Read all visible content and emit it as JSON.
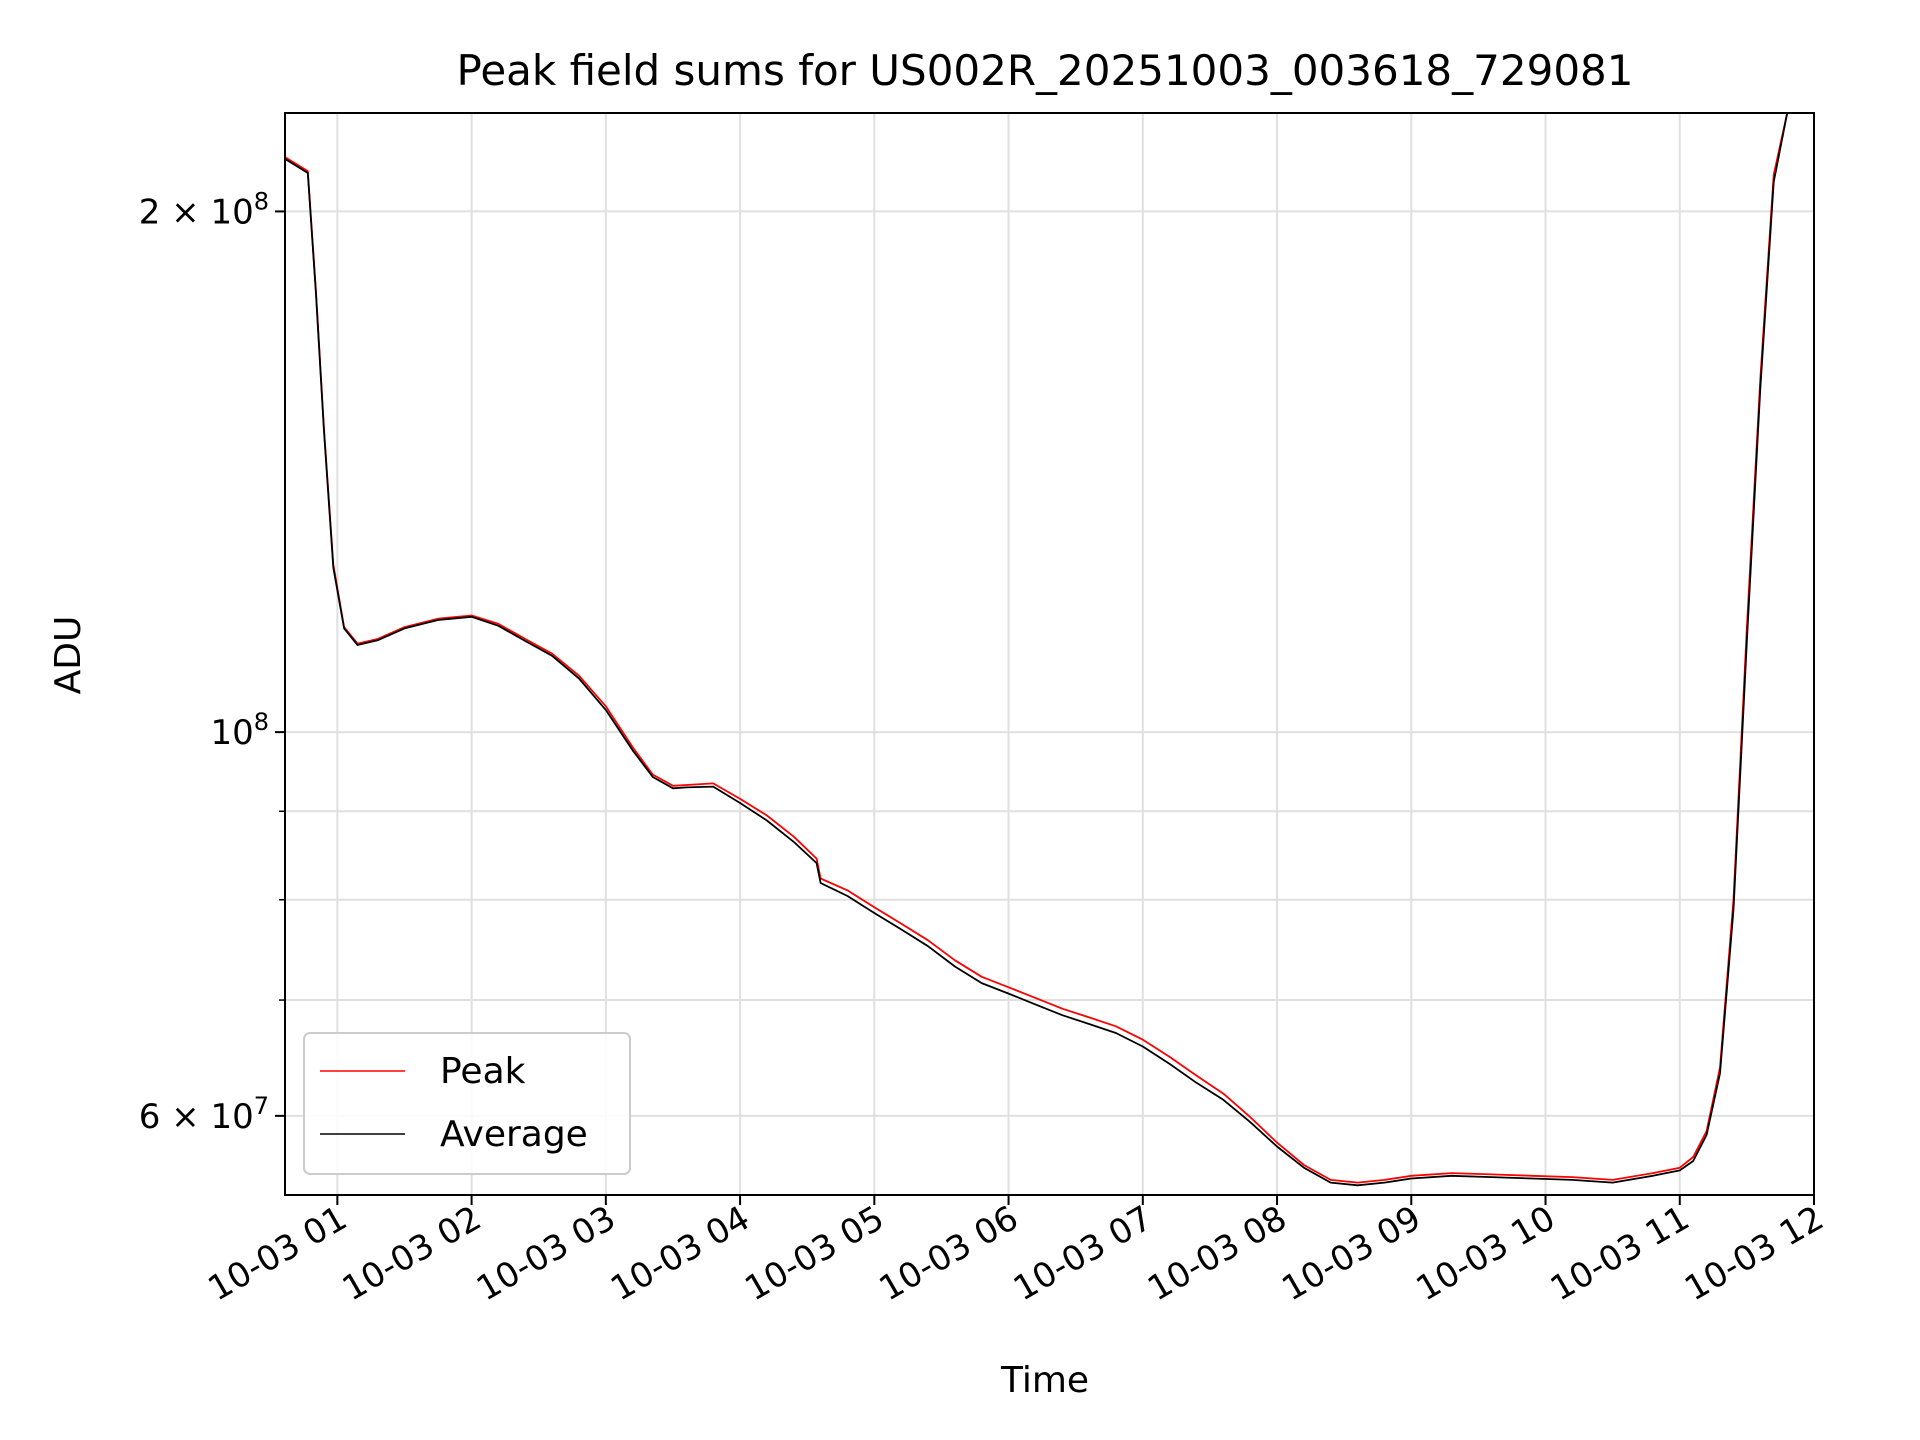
{
  "chart_data": {
    "type": "line",
    "title": "Peak field sums for US002R_20251003_003618_729081",
    "xlabel": "Time",
    "ylabel": "ADU",
    "yscale": "log",
    "grid": true,
    "legend_position": "lower-left",
    "x_unit": "hours since 2025-10-03 00:00",
    "xlim": [
      0.61,
      12.0
    ],
    "ylim": [
      54000000,
      228000000
    ],
    "x_ticks": [
      {
        "value": 1,
        "label": "10-03 01"
      },
      {
        "value": 2,
        "label": "10-03 02"
      },
      {
        "value": 3,
        "label": "10-03 03"
      },
      {
        "value": 4,
        "label": "10-03 04"
      },
      {
        "value": 5,
        "label": "10-03 05"
      },
      {
        "value": 6,
        "label": "10-03 06"
      },
      {
        "value": 7,
        "label": "10-03 07"
      },
      {
        "value": 8,
        "label": "10-03 08"
      },
      {
        "value": 9,
        "label": "10-03 09"
      },
      {
        "value": 10,
        "label": "10-03 10"
      },
      {
        "value": 11,
        "label": "10-03 11"
      },
      {
        "value": 12,
        "label": "10-03 12"
      }
    ],
    "y_major_ticks": [
      {
        "value": 60000000,
        "mantissa": "6",
        "exponent": "7"
      },
      {
        "value": 100000000,
        "mantissa": "",
        "exponent": "8"
      },
      {
        "value": 200000000,
        "mantissa": "2",
        "exponent": "8"
      }
    ],
    "y_minor_ticks": [
      70000000,
      80000000,
      90000000
    ],
    "series": [
      {
        "name": "Peak",
        "color": "#ff0000",
        "points": [
          [
            0.61,
            215000000
          ],
          [
            0.78,
            211000000
          ],
          [
            0.84,
            180000000
          ],
          [
            0.9,
            150000000
          ],
          [
            0.97,
            125000000
          ],
          [
            1.05,
            115000000
          ],
          [
            1.15,
            112500000
          ],
          [
            1.3,
            113200000
          ],
          [
            1.5,
            115000000
          ],
          [
            1.75,
            116300000
          ],
          [
            2.0,
            116800000
          ],
          [
            2.2,
            115500000
          ],
          [
            2.4,
            113200000
          ],
          [
            2.6,
            111000000
          ],
          [
            2.8,
            107800000
          ],
          [
            3.0,
            103500000
          ],
          [
            3.2,
            98000000
          ],
          [
            3.35,
            94500000
          ],
          [
            3.5,
            93100000
          ],
          [
            3.6,
            93200000
          ],
          [
            3.8,
            93400000
          ],
          [
            4.0,
            91500000
          ],
          [
            4.2,
            89500000
          ],
          [
            4.4,
            87000000
          ],
          [
            4.57,
            84500000
          ],
          [
            4.6,
            82300000
          ],
          [
            4.8,
            81000000
          ],
          [
            5.0,
            79200000
          ],
          [
            5.2,
            77500000
          ],
          [
            5.4,
            75800000
          ],
          [
            5.6,
            73800000
          ],
          [
            5.8,
            72200000
          ],
          [
            6.0,
            71200000
          ],
          [
            6.2,
            70200000
          ],
          [
            6.4,
            69200000
          ],
          [
            6.6,
            68400000
          ],
          [
            6.8,
            67600000
          ],
          [
            7.0,
            66400000
          ],
          [
            7.2,
            64900000
          ],
          [
            7.4,
            63300000
          ],
          [
            7.6,
            61800000
          ],
          [
            7.8,
            59900000
          ],
          [
            8.0,
            57900000
          ],
          [
            8.2,
            56200000
          ],
          [
            8.4,
            55100000
          ],
          [
            8.6,
            54900000
          ],
          [
            8.8,
            55100000
          ],
          [
            9.0,
            55400000
          ],
          [
            9.3,
            55600000
          ],
          [
            9.6,
            55500000
          ],
          [
            9.9,
            55400000
          ],
          [
            10.2,
            55300000
          ],
          [
            10.5,
            55100000
          ],
          [
            10.8,
            55600000
          ],
          [
            11.0,
            56000000
          ],
          [
            11.1,
            56800000
          ],
          [
            11.2,
            58800000
          ],
          [
            11.3,
            64000000
          ],
          [
            11.4,
            80000000
          ],
          [
            11.5,
            115000000
          ],
          [
            11.6,
            160000000
          ],
          [
            11.7,
            210000000
          ],
          [
            11.8,
            228000000
          ]
        ]
      },
      {
        "name": "Average",
        "color": "#000000",
        "points": [
          [
            0.61,
            214500000
          ],
          [
            0.78,
            210500000
          ],
          [
            0.84,
            179500000
          ],
          [
            0.9,
            149500000
          ],
          [
            0.97,
            124500000
          ],
          [
            1.05,
            114800000
          ],
          [
            1.15,
            112300000
          ],
          [
            1.3,
            113000000
          ],
          [
            1.5,
            114800000
          ],
          [
            1.75,
            116100000
          ],
          [
            2.0,
            116600000
          ],
          [
            2.2,
            115200000
          ],
          [
            2.4,
            112900000
          ],
          [
            2.6,
            110700000
          ],
          [
            2.8,
            107400000
          ],
          [
            3.0,
            103000000
          ],
          [
            3.2,
            97600000
          ],
          [
            3.35,
            94200000
          ],
          [
            3.5,
            92800000
          ],
          [
            3.6,
            92900000
          ],
          [
            3.8,
            93000000
          ],
          [
            4.0,
            91000000
          ],
          [
            4.2,
            88900000
          ],
          [
            4.4,
            86400000
          ],
          [
            4.57,
            84000000
          ],
          [
            4.6,
            81800000
          ],
          [
            4.8,
            80400000
          ],
          [
            5.0,
            78600000
          ],
          [
            5.2,
            76900000
          ],
          [
            5.4,
            75200000
          ],
          [
            5.6,
            73200000
          ],
          [
            5.8,
            71600000
          ],
          [
            6.0,
            70600000
          ],
          [
            6.2,
            69600000
          ],
          [
            6.4,
            68600000
          ],
          [
            6.6,
            67800000
          ],
          [
            6.8,
            67000000
          ],
          [
            7.0,
            65800000
          ],
          [
            7.2,
            64300000
          ],
          [
            7.4,
            62700000
          ],
          [
            7.6,
            61300000
          ],
          [
            7.8,
            59500000
          ],
          [
            8.0,
            57600000
          ],
          [
            8.2,
            56000000
          ],
          [
            8.4,
            54900000
          ],
          [
            8.6,
            54700000
          ],
          [
            8.8,
            54900000
          ],
          [
            9.0,
            55200000
          ],
          [
            9.3,
            55400000
          ],
          [
            9.6,
            55300000
          ],
          [
            9.9,
            55200000
          ],
          [
            10.2,
            55100000
          ],
          [
            10.5,
            54900000
          ],
          [
            10.8,
            55400000
          ],
          [
            11.0,
            55800000
          ],
          [
            11.1,
            56500000
          ],
          [
            11.2,
            58500000
          ],
          [
            11.3,
            63500000
          ],
          [
            11.4,
            79000000
          ],
          [
            11.5,
            113000000
          ],
          [
            11.6,
            158000000
          ],
          [
            11.7,
            208000000
          ],
          [
            11.8,
            228000000
          ]
        ]
      }
    ]
  }
}
